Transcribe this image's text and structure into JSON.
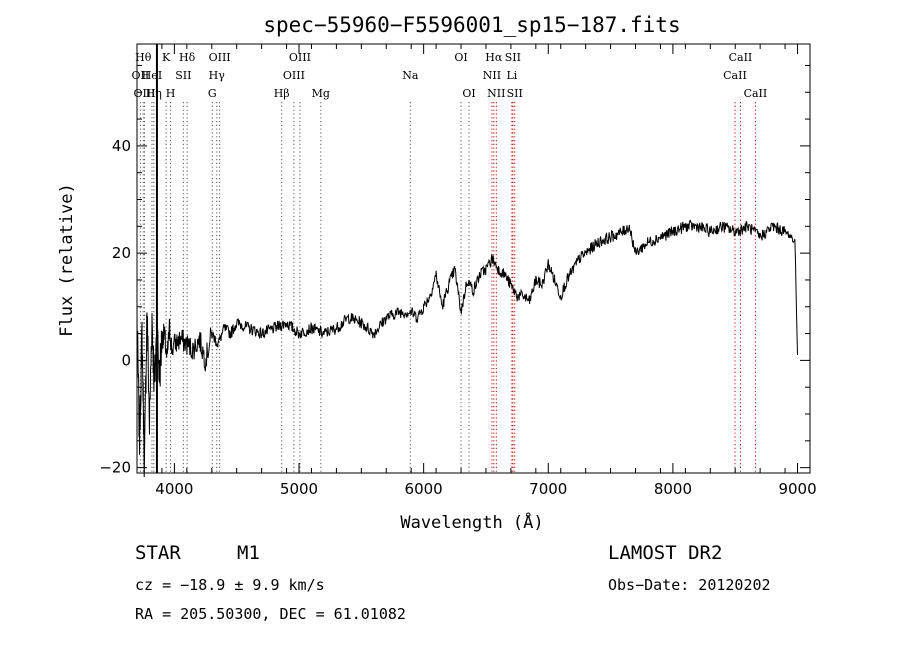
{
  "chart_data": {
    "type": "line",
    "title": "spec−55960−F5596001_sp15−187.fits",
    "xlabel": "Wavelength (Å)",
    "ylabel": "Flux (relative)",
    "xlim": [
      3700,
      9100
    ],
    "ylim": [
      -21,
      59
    ],
    "xticks": [
      4000,
      5000,
      6000,
      7000,
      8000,
      9000
    ],
    "yticks": [
      -20,
      0,
      20,
      40
    ],
    "grid": false,
    "series": [
      {
        "x": [
          3700,
          3720,
          3740,
          3760,
          3780,
          3800,
          3820,
          3840,
          3860,
          3880,
          3900,
          3920,
          3940,
          3960,
          3980,
          4000,
          4050,
          4100,
          4150,
          4200,
          4250,
          4300,
          4350,
          4400,
          4450,
          4500,
          4600,
          4700,
          4800,
          4900,
          5000,
          5100,
          5200,
          5300,
          5400,
          5500,
          5600,
          5700,
          5800,
          5900,
          5950,
          6000,
          6050,
          6100,
          6150,
          6200,
          6250,
          6300,
          6350,
          6400,
          6450,
          6500,
          6550,
          6600,
          6650,
          6700,
          6750,
          6800,
          6850,
          6900,
          6950,
          7000,
          7050,
          7100,
          7150,
          7200,
          7250,
          7300,
          7400,
          7500,
          7600,
          7650,
          7700,
          7750,
          7800,
          7900,
          8000,
          8100,
          8200,
          8300,
          8400,
          8500,
          8600,
          8700,
          8800,
          8900,
          8950,
          8980,
          9000
        ],
        "values": [
          8,
          -15,
          5,
          -20,
          10,
          -12,
          8,
          -5,
          6,
          -3,
          4,
          5,
          0,
          6,
          2,
          3,
          4,
          3,
          2,
          4,
          0,
          5,
          3,
          6,
          5,
          7,
          6,
          5,
          6,
          7,
          5,
          6,
          5,
          6,
          8,
          7,
          5,
          8,
          9,
          9,
          8,
          10,
          12,
          16,
          10,
          14,
          17,
          9,
          15,
          13,
          16,
          17,
          19,
          17,
          16,
          14,
          12,
          12,
          11,
          15,
          14,
          18,
          15,
          12,
          15,
          17,
          19,
          20,
          22,
          23,
          24,
          25,
          20,
          21,
          22,
          23,
          24,
          25,
          25,
          24,
          25,
          24,
          25,
          23,
          25,
          24,
          23,
          22,
          1
        ],
        "color": "#000000"
      }
    ],
    "marker": {
      "x": 3860,
      "color": "#000000"
    },
    "lines": [
      {
        "x": 3727,
        "labels": [
          "OII"
        ],
        "row": 1,
        "color": "#555555"
      },
      {
        "x": 3750,
        "labels": [
          "Hθ"
        ],
        "row": 0,
        "color": "#555555"
      },
      {
        "x": 3760,
        "labels": [
          "OIII"
        ],
        "row": 2,
        "color": "#555555"
      },
      {
        "x": 3820,
        "labels": [
          "HeI"
        ],
        "row": 1,
        "color": "#555555"
      },
      {
        "x": 3835,
        "labels": [
          "Hη"
        ],
        "row": 2,
        "color": "#555555"
      },
      {
        "x": 3934,
        "labels": [
          "K"
        ],
        "row": 0,
        "color": "#555555"
      },
      {
        "x": 3969,
        "labels": [
          "H"
        ],
        "row": 2,
        "color": "#555555"
      },
      {
        "x": 4072,
        "labels": [
          "SII"
        ],
        "row": 1,
        "color": "#555555"
      },
      {
        "x": 4102,
        "labels": [
          "Hδ"
        ],
        "row": 0,
        "color": "#555555"
      },
      {
        "x": 4304,
        "labels": [
          "G"
        ],
        "row": 2,
        "color": "#555555"
      },
      {
        "x": 4340,
        "labels": [
          "Hγ"
        ],
        "row": 1,
        "color": "#555555"
      },
      {
        "x": 4363,
        "labels": [
          "OIII"
        ],
        "row": 0,
        "color": "#555555"
      },
      {
        "x": 4861,
        "labels": [
          "Hβ"
        ],
        "row": 2,
        "color": "#555555"
      },
      {
        "x": 4959,
        "labels": [
          "OIII"
        ],
        "row": 1,
        "color": "#555555"
      },
      {
        "x": 5007,
        "labels": [
          "OIII"
        ],
        "row": 0,
        "color": "#555555"
      },
      {
        "x": 5175,
        "labels": [
          "Mg"
        ],
        "row": 2,
        "color": "#555555"
      },
      {
        "x": 5893,
        "labels": [
          "Na"
        ],
        "row": 1,
        "color": "#555555"
      },
      {
        "x": 6300,
        "labels": [
          "OI"
        ],
        "row": 0,
        "color": "#555555"
      },
      {
        "x": 6364,
        "labels": [
          "OI"
        ],
        "row": 2,
        "color": "#555555"
      },
      {
        "x": 6548,
        "labels": [
          "NII"
        ],
        "row": 1,
        "color": "#cc0000"
      },
      {
        "x": 6563,
        "labels": [
          "Hα"
        ],
        "row": 0,
        "color": "#cc0000"
      },
      {
        "x": 6583,
        "labels": [
          "NII"
        ],
        "row": 2,
        "color": "#cc0000"
      },
      {
        "x": 6708,
        "labels": [
          "Li"
        ],
        "row": 1,
        "color": "#cc0000"
      },
      {
        "x": 6716,
        "labels": [
          "SII"
        ],
        "row": 0,
        "color": "#cc0000"
      },
      {
        "x": 6731,
        "labels": [
          "SII"
        ],
        "row": 2,
        "color": "#cc0000"
      },
      {
        "x": 8498,
        "labels": [
          "CaII"
        ],
        "row": 1,
        "color": "#cc0000"
      },
      {
        "x": 8542,
        "labels": [
          "CaII"
        ],
        "row": 0,
        "color": "#cc0000"
      },
      {
        "x": 8662,
        "labels": [
          "CaII"
        ],
        "row": 2,
        "color": "#cc0000"
      }
    ]
  },
  "info": {
    "object_class": "STAR",
    "subclass": "M1",
    "survey": "LAMOST DR2",
    "cz": "cz = −18.9 ± 9.9 km/s",
    "obs_date": "Obs−Date: 20120202",
    "coords": "RA = 205.50300, DEC =  61.01082"
  }
}
